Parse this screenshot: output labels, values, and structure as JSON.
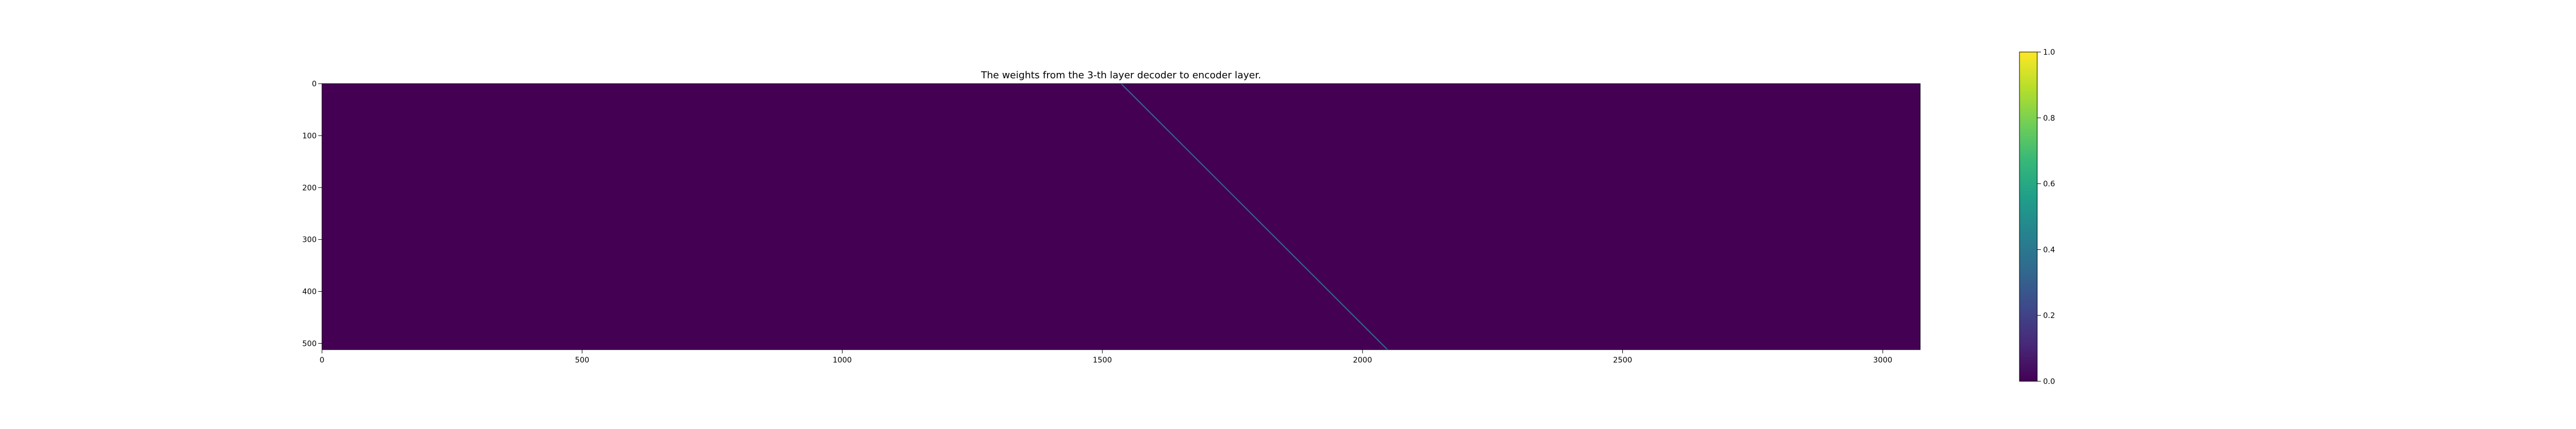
{
  "chart_data": {
    "type": "heatmap",
    "title": "The weights from the 3-th layer decoder to encoder layer.",
    "xlabel": "",
    "ylabel": "",
    "xlim": [
      0,
      3072
    ],
    "ylim": [
      512,
      0
    ],
    "x_ticks": [
      0,
      500,
      1000,
      1500,
      2000,
      2500,
      3000
    ],
    "x_tick_labels": [
      "0",
      "500",
      "1000",
      "1500",
      "2000",
      "2500",
      "3000"
    ],
    "y_ticks": [
      0,
      100,
      200,
      300,
      400,
      500
    ],
    "y_tick_labels": [
      "0",
      "100",
      "200",
      "300",
      "400",
      "500"
    ],
    "background_value": 0.0,
    "diagonal": {
      "x_start": 1536,
      "y_start": 0,
      "x_end": 2048,
      "y_end": 512,
      "value": 0.35
    },
    "colormap": "viridis",
    "grid": false,
    "colorbar": {
      "range": [
        0.0,
        1.0
      ],
      "ticks": [
        0.0,
        0.2,
        0.4,
        0.6,
        0.8,
        1.0
      ],
      "tick_labels": [
        "0.0",
        "0.2",
        "0.4",
        "0.6",
        "0.8",
        "1.0"
      ]
    },
    "colors": {
      "low": "#440154",
      "high": "#fde725",
      "viridis_stops": [
        "#440154",
        "#482878",
        "#3e4989",
        "#31688e",
        "#26828e",
        "#1f9e89",
        "#35b779",
        "#6ece58",
        "#b5de2b",
        "#fde725"
      ]
    }
  }
}
